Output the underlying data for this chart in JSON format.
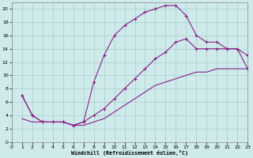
{
  "xlabel": "Windchill (Refroidissement éolien,°C)",
  "bg_color": "#ceeaea",
  "line_color": "#882288",
  "grid_color": "#aacccc",
  "xlim": [
    0,
    23
  ],
  "ylim": [
    0,
    21
  ],
  "xticks": [
    0,
    1,
    2,
    3,
    4,
    5,
    6,
    7,
    8,
    9,
    10,
    11,
    12,
    13,
    14,
    15,
    16,
    17,
    18,
    19,
    20,
    21,
    22,
    23
  ],
  "yticks": [
    0,
    2,
    4,
    6,
    8,
    10,
    12,
    14,
    16,
    18,
    20
  ],
  "curve1_x": [
    1,
    2,
    3,
    4,
    5,
    6,
    7,
    8,
    9,
    10,
    11,
    12,
    13,
    14,
    15,
    16,
    17,
    18,
    19,
    20,
    21,
    22,
    23
  ],
  "curve1_y": [
    7,
    4,
    3,
    3,
    3,
    2.5,
    3,
    9,
    13,
    16,
    17.5,
    18.5,
    19.5,
    20,
    20.5,
    20.5,
    19,
    16,
    15,
    15,
    14,
    14,
    11
  ],
  "curve2_x": [
    1,
    2,
    3,
    4,
    5,
    6,
    7,
    8,
    9,
    10,
    11,
    12,
    13,
    14,
    15,
    16,
    17,
    18,
    19,
    20,
    21,
    22,
    23
  ],
  "curve2_y": [
    7,
    4,
    3,
    3,
    3,
    2.5,
    3,
    4,
    5,
    6.5,
    8,
    9.5,
    11,
    12.5,
    13.5,
    15,
    15.5,
    14,
    14,
    14,
    14,
    14,
    13
  ],
  "curve3_x": [
    1,
    2,
    3,
    4,
    5,
    6,
    7,
    8,
    9,
    10,
    11,
    12,
    13,
    14,
    15,
    16,
    17,
    18,
    19,
    20,
    21,
    22,
    23
  ],
  "curve3_y": [
    3.5,
    3,
    3,
    3,
    3,
    2.5,
    2.5,
    3,
    3.5,
    4.5,
    5.5,
    6.5,
    7.5,
    8.5,
    9,
    9.5,
    10,
    10.5,
    10.5,
    11,
    11,
    11,
    11
  ]
}
